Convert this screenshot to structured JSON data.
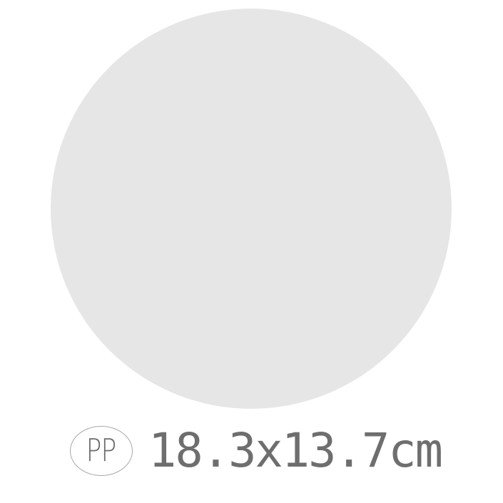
{
  "product": {
    "color": "#e6e6e6"
  },
  "caption": {
    "material_code": "PP",
    "dimensions": "18.3x13.7cm"
  },
  "colors": {
    "text": "#6e6e6e",
    "badge_border": "#a8a8a8",
    "background": "#ffffff"
  }
}
